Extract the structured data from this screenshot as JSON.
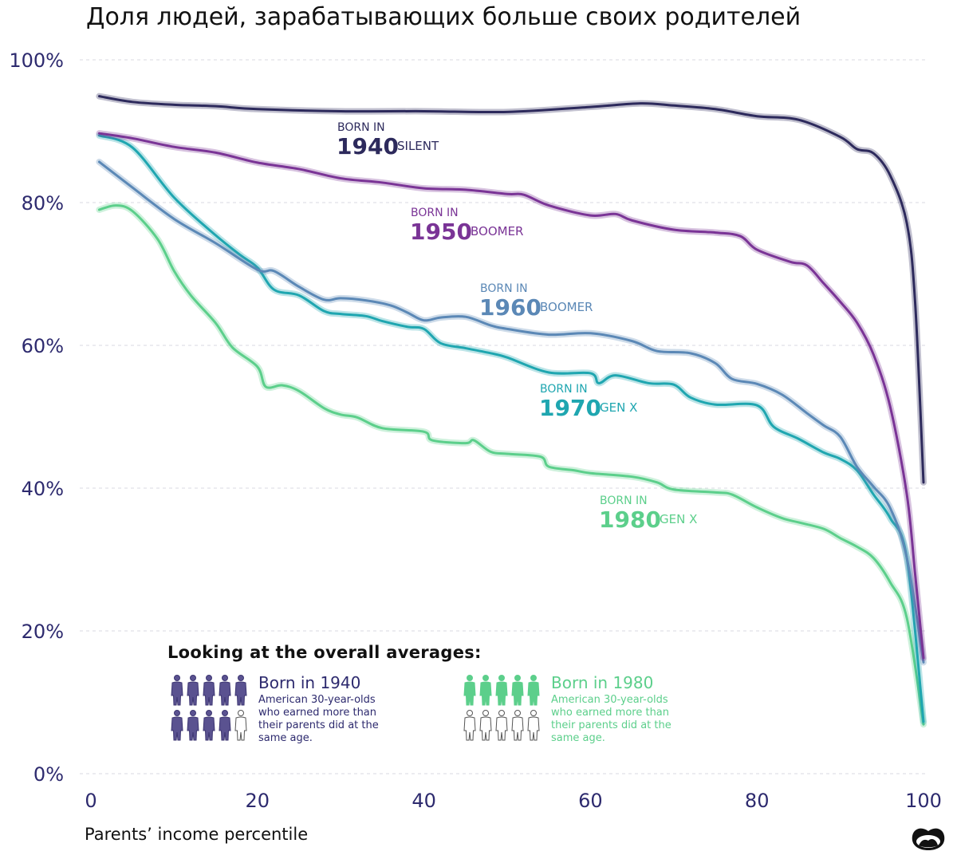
{
  "title": "Доля людей, зарабатывающих больше своих родителей",
  "chart_data": {
    "type": "line",
    "title": "Доля людей, зарабатывающих больше своих родителей",
    "xlabel": "Parents’ income percentile",
    "ylabel": "",
    "xlim": [
      0,
      100
    ],
    "ylim": [
      0,
      100
    ],
    "xticks": [
      "0",
      "20",
      "40",
      "60",
      "80",
      "100"
    ],
    "yticks": [
      "0%",
      "20%",
      "40%",
      "60%",
      "80%",
      "100%"
    ],
    "grid": "horizontal dashed",
    "series": [
      {
        "name": "1940",
        "label_prefix": "BORN IN",
        "generation": "SILENT",
        "color": "#2d2a5c",
        "x": [
          1,
          5,
          10,
          15,
          20,
          30,
          40,
          50,
          60,
          66,
          70,
          75,
          80,
          85,
          90,
          92,
          94,
          96,
          98,
          99,
          100
        ],
        "y": [
          94.9,
          94.1,
          93.7,
          93.5,
          93.1,
          92.8,
          92.8,
          92.7,
          93.4,
          93.9,
          93.6,
          93.1,
          92.1,
          91.6,
          89.2,
          87.5,
          86.9,
          83.8,
          77.1,
          65.9,
          40.8
        ]
      },
      {
        "name": "1950",
        "label_prefix": "BORN IN",
        "generation": "BOOMER",
        "color": "#7a3496",
        "x": [
          1,
          5,
          10,
          15,
          20,
          25,
          30,
          35,
          40,
          45,
          50,
          52,
          55,
          60,
          63,
          65,
          70,
          75,
          78,
          80,
          84,
          86,
          88,
          90,
          92,
          94,
          96,
          98,
          99,
          100
        ],
        "y": [
          89.7,
          89.0,
          87.8,
          87.0,
          85.6,
          84.7,
          83.4,
          82.8,
          82.0,
          81.8,
          81.2,
          81.1,
          79.6,
          78.2,
          78.4,
          77.5,
          76.2,
          75.8,
          75.3,
          73.4,
          71.7,
          71.2,
          68.7,
          66.1,
          63.2,
          58.7,
          51.4,
          39.1,
          27.9,
          16.2
        ]
      },
      {
        "name": "1960",
        "label_prefix": "BORN IN",
        "generation": "BOOMER",
        "color": "#5b88b6",
        "x": [
          1,
          5,
          10,
          15,
          20,
          22,
          25,
          28,
          30,
          33,
          36,
          38,
          40,
          42,
          45,
          48,
          50,
          55,
          60,
          65,
          68,
          72,
          75,
          77,
          80,
          83,
          86,
          88,
          90,
          92,
          94,
          96,
          98,
          100
        ],
        "y": [
          85.7,
          82.1,
          77.7,
          74.3,
          70.6,
          70.4,
          68.2,
          66.4,
          66.6,
          66.3,
          65.6,
          64.6,
          63.5,
          63.9,
          64.0,
          62.8,
          62.3,
          61.5,
          61.7,
          60.6,
          59.2,
          58.9,
          57.5,
          55.3,
          54.6,
          53.1,
          50.5,
          48.8,
          47.2,
          43.0,
          40.2,
          37.2,
          30.2,
          15.6
        ]
      },
      {
        "name": "1970",
        "label_prefix": "BORN IN",
        "generation": "GEN X",
        "color": "#1fa6b0",
        "x": [
          1,
          5,
          10,
          15,
          18,
          20,
          22,
          25,
          28,
          30,
          33,
          35,
          38,
          40,
          42,
          45,
          48,
          50,
          55,
          60,
          61,
          63,
          67,
          70,
          72,
          75,
          80,
          82,
          85,
          88,
          90,
          92,
          94,
          96,
          98,
          100
        ],
        "y": [
          89.4,
          87.7,
          80.7,
          75.4,
          72.6,
          70.9,
          67.8,
          67.0,
          64.8,
          64.4,
          64.1,
          63.4,
          62.6,
          62.3,
          60.3,
          59.6,
          58.9,
          58.3,
          56.2,
          56.1,
          54.7,
          55.8,
          54.7,
          54.5,
          52.7,
          51.7,
          51.6,
          48.6,
          46.9,
          45.0,
          44.1,
          42.5,
          39.1,
          35.8,
          30.2,
          7.3
        ]
      },
      {
        "name": "1980",
        "label_prefix": "BORN IN",
        "generation": "GEN X",
        "color": "#5ccf8b",
        "x": [
          1,
          3,
          5,
          8,
          10,
          12,
          15,
          17,
          20,
          21,
          23,
          25,
          28,
          30,
          32,
          35,
          40,
          41,
          45,
          46,
          48,
          50,
          54,
          55,
          58,
          60,
          65,
          68,
          70,
          75,
          77,
          80,
          83,
          85,
          88,
          90,
          92,
          94,
          96,
          98,
          100
        ],
        "y": [
          79.0,
          79.6,
          78.8,
          74.9,
          70.4,
          67.0,
          63.1,
          59.7,
          57.0,
          54.2,
          54.4,
          53.6,
          51.2,
          50.3,
          49.9,
          48.4,
          47.9,
          46.7,
          46.3,
          46.7,
          45.1,
          44.8,
          44.4,
          43.0,
          42.5,
          42.1,
          41.6,
          40.8,
          39.8,
          39.4,
          39.1,
          37.3,
          35.8,
          35.2,
          34.3,
          33.0,
          31.8,
          30.2,
          26.8,
          21.8,
          6.9
        ]
      }
    ]
  },
  "legend": {
    "title": "Looking at the overall averages:",
    "items": [
      {
        "heading": "Born in 1940",
        "text": "American 30-year-olds who earned more than their parents did at the same age.",
        "filled": 9,
        "total": 10,
        "color": "#3d3672",
        "fill": "#5a5290"
      },
      {
        "heading": "Born in 1980",
        "text": "American 30-year-olds who earned more than their parents did at the same age.",
        "filled": 5,
        "total": 10,
        "color": "#5ccf8b",
        "fill": "#5ccf8b"
      }
    ]
  },
  "logo": "mustache-logo-icon"
}
